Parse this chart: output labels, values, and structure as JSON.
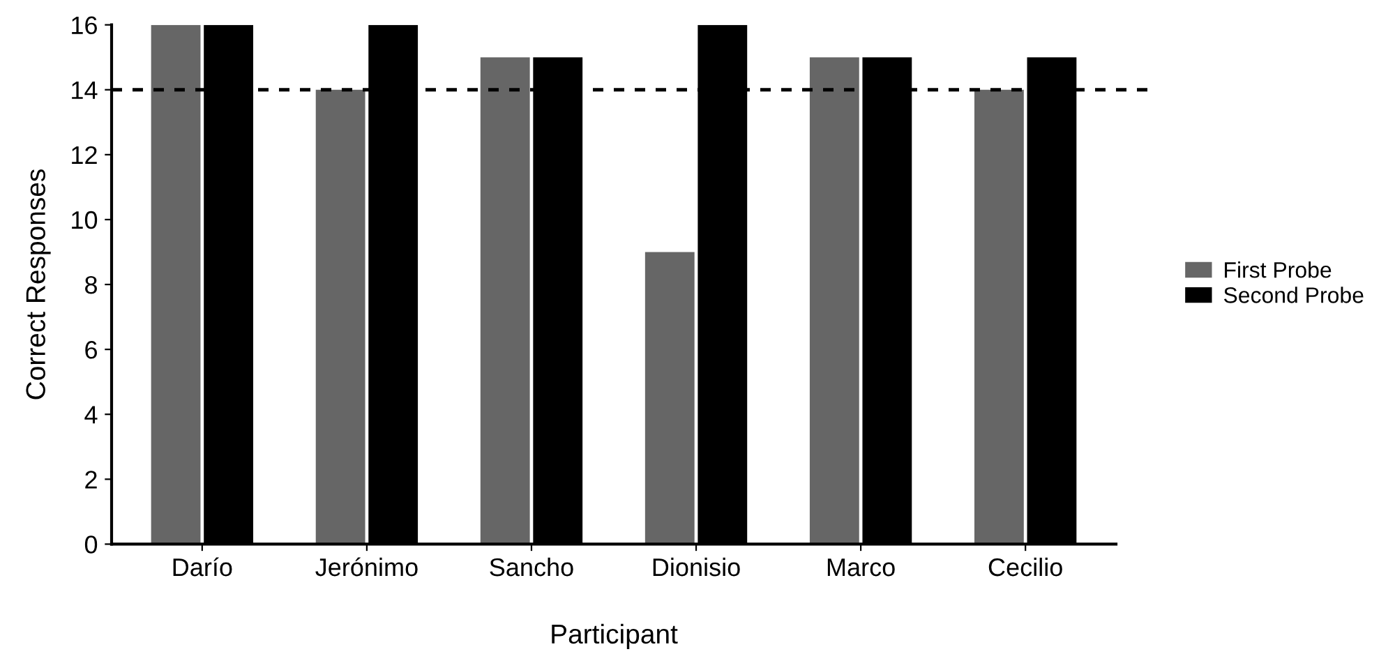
{
  "chart_data": {
    "type": "bar",
    "xlabel": "Participant",
    "ylabel": "Correct Responses",
    "categories": [
      "Darío",
      "Jerónimo",
      "Sancho",
      "Dionisio",
      "Marco",
      "Cecilio"
    ],
    "series": [
      {
        "name": "First Probe",
        "color": "#666666",
        "values": [
          16,
          14,
          15,
          9,
          15,
          14
        ]
      },
      {
        "name": "Second Probe",
        "color": "#000000",
        "values": [
          16,
          16,
          15,
          16,
          15,
          15
        ]
      }
    ],
    "ylim": [
      0,
      16
    ],
    "yticks": [
      0,
      2,
      4,
      6,
      8,
      10,
      12,
      14,
      16
    ],
    "ref_lines": [
      {
        "axis": "y",
        "value": 14,
        "color": "#000000",
        "line_style": "dashed"
      }
    ],
    "grid": false,
    "legend": "right"
  }
}
